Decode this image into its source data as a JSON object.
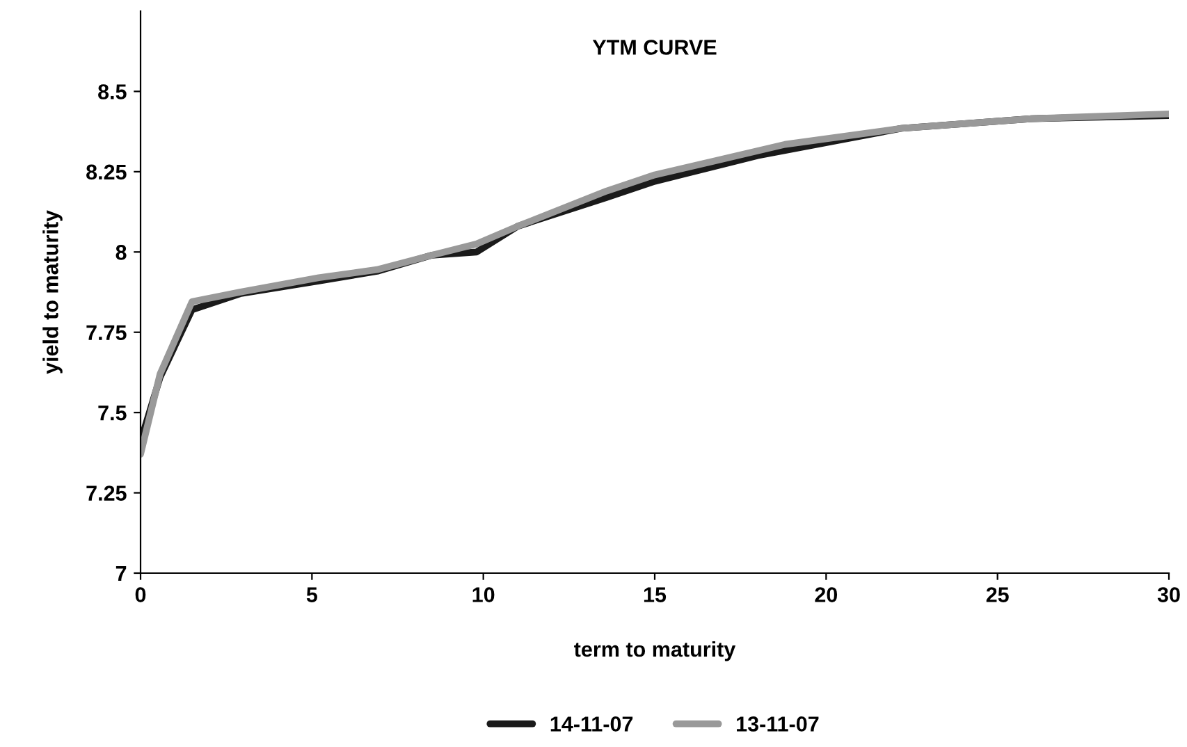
{
  "chart_data": {
    "type": "line",
    "title": "YTM CURVE",
    "xlabel": "term to maturity",
    "ylabel": "yield to maturity",
    "xlim": [
      0,
      30
    ],
    "xticks": [
      0,
      5,
      10,
      15,
      20,
      25,
      30
    ],
    "ylim": [
      7,
      8.75
    ],
    "yticks": [
      7,
      7.25,
      7.5,
      7.75,
      8,
      8.25,
      8.5
    ],
    "grid": false,
    "legend": "bottom",
    "marker": "none",
    "line_style": "solid",
    "series": [
      {
        "name": "14-11-07",
        "color": "#1a1a1a",
        "x": [
          0,
          0.57,
          1.5,
          2.9,
          5.2,
          6.9,
          8.5,
          9.8,
          11,
          13.6,
          15,
          18,
          22.2,
          26,
          30
        ],
        "values": [
          7.41,
          7.61,
          7.82,
          7.87,
          7.91,
          7.94,
          7.99,
          8.0,
          8.08,
          8.17,
          8.22,
          8.3,
          8.385,
          8.415,
          8.425
        ]
      },
      {
        "name": "13-11-07",
        "color": "#999999",
        "x": [
          0,
          0.57,
          1.5,
          2.9,
          5.2,
          6.9,
          8.5,
          9.8,
          11,
          13.6,
          15,
          18.8,
          22.2,
          26,
          30
        ],
        "values": [
          7.37,
          7.62,
          7.845,
          7.875,
          7.92,
          7.945,
          7.99,
          8.025,
          8.08,
          8.19,
          8.24,
          8.335,
          8.385,
          8.415,
          8.43
        ]
      }
    ]
  }
}
